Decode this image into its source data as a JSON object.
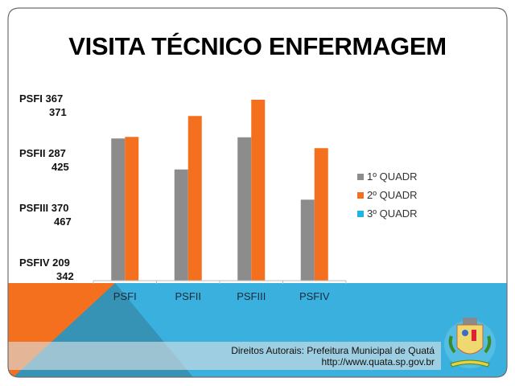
{
  "slide": {
    "title": "VISITA TÉCNICO ENFERMAGEM",
    "side_labels": [
      {
        "line1": "PSFI 367",
        "line2": "371"
      },
      {
        "line1": "PSFII 287",
        "line2": "425"
      },
      {
        "line1": "PSFIII 370",
        "line2": "467"
      },
      {
        "line1": "PSFIV 209",
        "line2": "342"
      }
    ],
    "footer": {
      "line1": "Direitos Autorais: Prefeitura Municipal de Quatá",
      "line2": "http://www.quata.sp.gov.br"
    },
    "logo": "municipal-coat-of-arms",
    "colors": {
      "orange": "#f5701e",
      "blue": "#39b0de",
      "dark_blue": "#3693b5",
      "gray": "#8c8c8c"
    }
  },
  "chart_data": {
    "type": "bar",
    "title": "VISITA TÉCNICO ENFERMAGEM",
    "categories": [
      "PSFI",
      "PSFII",
      "PSFIII",
      "PSFIV"
    ],
    "series": [
      {
        "name": "1º QUADR",
        "values": [
          367,
          287,
          370,
          209
        ],
        "color": "#8c8c8c"
      },
      {
        "name": "2º QUADR",
        "values": [
          371,
          425,
          467,
          342
        ],
        "color": "#f5701e"
      },
      {
        "name": "3º QUADR",
        "values": [
          0,
          0,
          0,
          0
        ],
        "color": "#1fb4e6"
      }
    ],
    "ylim": [
      0,
      467
    ],
    "grid": false,
    "legend_position": "right"
  }
}
